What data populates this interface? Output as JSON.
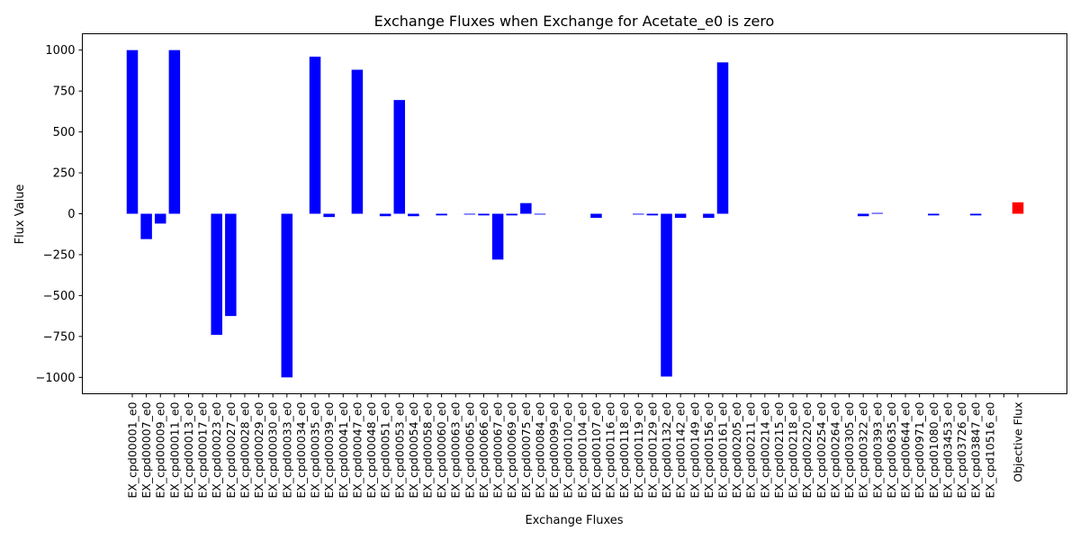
{
  "chart_data": {
    "type": "bar",
    "title": "Exchange Fluxes when Exchange for Acetate_e0 is zero",
    "xlabel": "Exchange Fluxes",
    "ylabel": "Flux Value",
    "ylim": [
      -1100,
      1100
    ],
    "yticks": [
      1000,
      750,
      500,
      250,
      0,
      -250,
      -500,
      -750,
      -1000
    ],
    "ytick_labels": [
      "1000",
      "750",
      "500",
      "250",
      "0",
      "−250",
      "−500",
      "−750",
      "−1000"
    ],
    "grid": false,
    "colors": {
      "exchange": "#0000ff",
      "objective": "#ff0000"
    },
    "categories": [
      "EX_cpd00001_e0",
      "EX_cpd00007_e0",
      "EX_cpd00009_e0",
      "EX_cpd00011_e0",
      "EX_cpd00013_e0",
      "EX_cpd00017_e0",
      "EX_cpd00023_e0",
      "EX_cpd00027_e0",
      "EX_cpd00028_e0",
      "EX_cpd00029_e0",
      "EX_cpd00030_e0",
      "EX_cpd00033_e0",
      "EX_cpd00034_e0",
      "EX_cpd00035_e0",
      "EX_cpd00039_e0",
      "EX_cpd00041_e0",
      "EX_cpd00047_e0",
      "EX_cpd00048_e0",
      "EX_cpd00051_e0",
      "EX_cpd00053_e0",
      "EX_cpd00054_e0",
      "EX_cpd00058_e0",
      "EX_cpd00060_e0",
      "EX_cpd00063_e0",
      "EX_cpd00065_e0",
      "EX_cpd00066_e0",
      "EX_cpd00067_e0",
      "EX_cpd00069_e0",
      "EX_cpd00075_e0",
      "EX_cpd00084_e0",
      "EX_cpd00099_e0",
      "EX_cpd00100_e0",
      "EX_cpd00104_e0",
      "EX_cpd00107_e0",
      "EX_cpd00116_e0",
      "EX_cpd00118_e0",
      "EX_cpd00119_e0",
      "EX_cpd00129_e0",
      "EX_cpd00132_e0",
      "EX_cpd00142_e0",
      "EX_cpd00149_e0",
      "EX_cpd00156_e0",
      "EX_cpd00161_e0",
      "EX_cpd00205_e0",
      "EX_cpd00211_e0",
      "EX_cpd00214_e0",
      "EX_cpd00215_e0",
      "EX_cpd00218_e0",
      "EX_cpd00220_e0",
      "EX_cpd00254_e0",
      "EX_cpd00264_e0",
      "EX_cpd00305_e0",
      "EX_cpd00322_e0",
      "EX_cpd00393_e0",
      "EX_cpd00635_e0",
      "EX_cpd00644_e0",
      "EX_cpd00971_e0",
      "EX_cpd01080_e0",
      "EX_cpd03453_e0",
      "EX_cpd03726_e0",
      "EX_cpd03847_e0",
      "EX_cpd10516_e0",
      "",
      "Objective Flux"
    ],
    "values": [
      1000,
      -155,
      -60,
      1000,
      0,
      0,
      -740,
      -625,
      0,
      0,
      0,
      -1000,
      0,
      960,
      -20,
      0,
      880,
      0,
      -15,
      695,
      -15,
      0,
      -10,
      0,
      -5,
      -10,
      -280,
      -10,
      65,
      -5,
      0,
      0,
      0,
      -25,
      0,
      0,
      -5,
      -10,
      -995,
      -25,
      0,
      -25,
      925,
      0,
      0,
      0,
      0,
      0,
      0,
      0,
      0,
      0,
      -15,
      5,
      0,
      0,
      0,
      -10,
      0,
      0,
      -10,
      0,
      0,
      70
    ]
  }
}
